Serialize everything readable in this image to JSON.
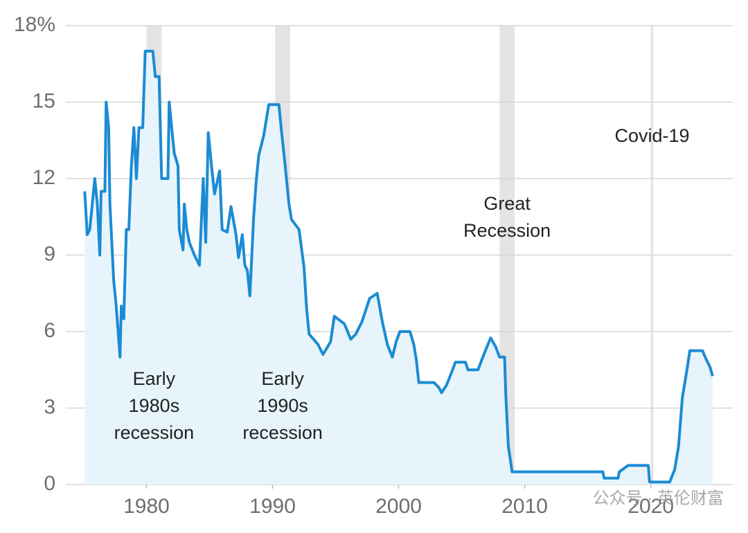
{
  "chart_data": {
    "type": "line",
    "x": [
      1975.1,
      1975.3,
      1975.5,
      1975.7,
      1975.9,
      1976.1,
      1976.3,
      1976.4,
      1976.7,
      1976.8,
      1977.0,
      1977.1,
      1977.4,
      1977.6,
      1977.9,
      1978.0,
      1978.2,
      1978.4,
      1978.6,
      1978.8,
      1979.0,
      1979.2,
      1979.4,
      1979.7,
      1979.9,
      1980.5,
      1980.7,
      1981.0,
      1981.1,
      1981.2,
      1981.7,
      1981.8,
      1982.0,
      1982.2,
      1982.5,
      1982.6,
      1982.9,
      1983.0,
      1983.2,
      1983.4,
      1983.8,
      1984.2,
      1984.5,
      1984.7,
      1984.9,
      1985.2,
      1985.4,
      1985.8,
      1986.0,
      1986.4,
      1986.7,
      1987.1,
      1987.3,
      1987.6,
      1987.8,
      1988.0,
      1988.2,
      1988.5,
      1988.7,
      1988.9,
      1989.3,
      1989.7,
      1990.5,
      1990.7,
      1991.0,
      1991.3,
      1991.5,
      1992.1,
      1992.5,
      1992.7,
      1992.9,
      1993.6,
      1994.0,
      1994.6,
      1994.9,
      1995.7,
      1996.2,
      1996.6,
      1997.1,
      1997.5,
      1997.7,
      1998.3,
      1998.7,
      1999.1,
      1999.5,
      1999.8,
      2000.1,
      2000.9,
      2001.2,
      2001.4,
      2001.6,
      2002.8,
      2003.2,
      2003.4,
      2003.8,
      2004.2,
      2004.5,
      2005.3,
      2005.5,
      2006.3,
      2006.6,
      2007.0,
      2007.3,
      2007.7,
      2008.0,
      2008.4,
      2008.5,
      2008.7,
      2009.0,
      2016.2,
      2016.3,
      2017.4,
      2017.5,
      2018.2,
      2019.8,
      2019.9,
      2021.5,
      2021.9,
      2022.2,
      2022.5,
      2022.8,
      2023.1,
      2024.1,
      2024.4,
      2024.7,
      2024.9
    ],
    "values": [
      11.5,
      9.8,
      10.0,
      11,
      12,
      11,
      9,
      11.5,
      11.5,
      15,
      14,
      11,
      8,
      7,
      5,
      7,
      6.5,
      10,
      10,
      12.5,
      14,
      12,
      14,
      14,
      17,
      17,
      16,
      16,
      14,
      12,
      12,
      15,
      14,
      13,
      12.5,
      10,
      9.2,
      11,
      10,
      9.5,
      9,
      8.6,
      12,
      9.5,
      13.8,
      12.3,
      11.4,
      12.3,
      10,
      9.9,
      10.9,
      9.8,
      8.9,
      9.8,
      8.6,
      8.4,
      7.4,
      10.5,
      11.9,
      12.9,
      13.7,
      14.9,
      14.9,
      13.9,
      12.5,
      11,
      10.4,
      10.0,
      8.5,
      6.9,
      5.9,
      5.5,
      5.1,
      5.6,
      6.6,
      6.3,
      5.7,
      5.9,
      6.4,
      7.0,
      7.3,
      7.5,
      6.4,
      5.5,
      5.0,
      5.6,
      6.0,
      6.0,
      5.5,
      4.9,
      4.0,
      4.0,
      3.8,
      3.6,
      3.9,
      4.4,
      4.8,
      4.8,
      4.5,
      4.5,
      4.9,
      5.4,
      5.75,
      5.4,
      5.0,
      5.0,
      3.5,
      1.5,
      0.5,
      0.5,
      0.25,
      0.25,
      0.5,
      0.75,
      0.75,
      0.1,
      0.1,
      0.6,
      1.5,
      3.4,
      4.3,
      5.25,
      5.25,
      4.9,
      4.6,
      4.25
    ],
    "color": "#1b8bd3",
    "fill_color": "#e7f4fc",
    "xlim": [
      1973.6,
      2026.5
    ],
    "ylim": [
      0,
      18
    ],
    "xticks": [
      1980,
      1990,
      2000,
      2010,
      2020
    ],
    "yticks": [
      0,
      3,
      6,
      9,
      12,
      15,
      {
        "value": 18,
        "label": "18%"
      }
    ],
    "grid": true,
    "recessions": [
      {
        "start": 1980.0,
        "end": 1981.2,
        "label": [
          "Early",
          "1980s",
          "recession"
        ]
      },
      {
        "start": 1990.2,
        "end": 1991.4,
        "label": [
          "Early",
          "1990s",
          "recession"
        ]
      },
      {
        "start": 2008.0,
        "end": 2009.2,
        "label": [
          "Great",
          "Recession"
        ]
      },
      {
        "start": 2020.0,
        "end": 2020.2,
        "label": [
          "Covid-19"
        ]
      }
    ],
    "watermark": "公众号 · 英伦财富"
  }
}
